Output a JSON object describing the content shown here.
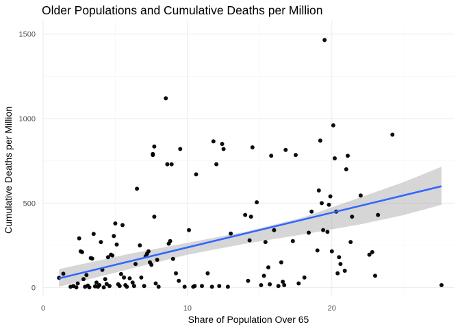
{
  "chart_data": {
    "type": "scatter",
    "title": "Older Populations and Cumulative Deaths per Million",
    "xlabel": "Share of Population Over 65",
    "ylabel": "Cumulative Deaths per Million",
    "xlim": [
      0,
      28.5
    ],
    "ylim": [
      -50,
      1580
    ],
    "x_ticks": [
      0,
      10,
      20
    ],
    "x_tick_labels": [
      "0",
      "10",
      "20"
    ],
    "y_ticks": [
      0,
      500,
      1000,
      1500
    ],
    "y_tick_labels": [
      "0",
      "500",
      "1000",
      "1500"
    ],
    "grid": true,
    "legend": "none",
    "point_color": "#000000",
    "fit_line_color": "#3366FF",
    "ribbon_color": "#999999",
    "points": [
      [
        1.1,
        58
      ],
      [
        1.4,
        82
      ],
      [
        1.9,
        5
      ],
      [
        2.1,
        10
      ],
      [
        2.3,
        2
      ],
      [
        2.4,
        25
      ],
      [
        2.5,
        292
      ],
      [
        2.6,
        215
      ],
      [
        2.7,
        210
      ],
      [
        2.8,
        50
      ],
      [
        2.9,
        5
      ],
      [
        3.0,
        75
      ],
      [
        3.1,
        12
      ],
      [
        3.2,
        2
      ],
      [
        3.3,
        175
      ],
      [
        3.4,
        172
      ],
      [
        3.5,
        318
      ],
      [
        3.6,
        8
      ],
      [
        3.7,
        30
      ],
      [
        3.8,
        5
      ],
      [
        3.9,
        15
      ],
      [
        4.0,
        270
      ],
      [
        4.1,
        105
      ],
      [
        4.2,
        2
      ],
      [
        4.3,
        50
      ],
      [
        4.4,
        22
      ],
      [
        4.5,
        180
      ],
      [
        4.6,
        10
      ],
      [
        4.7,
        195
      ],
      [
        4.8,
        190
      ],
      [
        4.9,
        305
      ],
      [
        5.0,
        380
      ],
      [
        5.1,
        255
      ],
      [
        5.2,
        20
      ],
      [
        5.3,
        10
      ],
      [
        5.4,
        80
      ],
      [
        5.5,
        370
      ],
      [
        5.6,
        60
      ],
      [
        5.7,
        15
      ],
      [
        5.8,
        5
      ],
      [
        6.0,
        55
      ],
      [
        6.2,
        30
      ],
      [
        6.3,
        10
      ],
      [
        6.4,
        140
      ],
      [
        6.5,
        585
      ],
      [
        6.7,
        250
      ],
      [
        6.8,
        60
      ],
      [
        7.0,
        10
      ],
      [
        7.1,
        185
      ],
      [
        7.2,
        200
      ],
      [
        7.3,
        215
      ],
      [
        7.4,
        150
      ],
      [
        7.5,
        135
      ],
      [
        7.6,
        785
      ],
      [
        7.6,
        790
      ],
      [
        7.7,
        835
      ],
      [
        7.7,
        420
      ],
      [
        7.8,
        25
      ],
      [
        7.9,
        165
      ],
      [
        8.0,
        5
      ],
      [
        8.5,
        1120
      ],
      [
        8.6,
        730
      ],
      [
        8.7,
        260
      ],
      [
        8.8,
        275
      ],
      [
        8.9,
        730
      ],
      [
        9.0,
        170
      ],
      [
        9.2,
        85
      ],
      [
        9.4,
        40
      ],
      [
        9.5,
        820
      ],
      [
        9.8,
        5
      ],
      [
        10.1,
        340
      ],
      [
        10.4,
        5
      ],
      [
        10.5,
        10
      ],
      [
        10.6,
        670
      ],
      [
        11.0,
        10
      ],
      [
        11.4,
        85
      ],
      [
        11.7,
        5
      ],
      [
        11.8,
        865
      ],
      [
        12.0,
        730
      ],
      [
        12.2,
        10
      ],
      [
        12.4,
        850
      ],
      [
        12.5,
        820
      ],
      [
        12.8,
        5
      ],
      [
        13.0,
        320
      ],
      [
        14.0,
        430
      ],
      [
        14.2,
        40
      ],
      [
        14.3,
        280
      ],
      [
        14.4,
        420
      ],
      [
        14.5,
        830
      ],
      [
        14.8,
        505
      ],
      [
        15.1,
        15
      ],
      [
        15.3,
        70
      ],
      [
        15.4,
        270
      ],
      [
        15.6,
        120
      ],
      [
        15.7,
        20
      ],
      [
        15.8,
        780
      ],
      [
        16.0,
        340
      ],
      [
        16.3,
        10
      ],
      [
        16.5,
        150
      ],
      [
        16.6,
        35
      ],
      [
        16.7,
        15
      ],
      [
        16.8,
        815
      ],
      [
        17.3,
        275
      ],
      [
        17.5,
        785
      ],
      [
        17.7,
        25
      ],
      [
        18.1,
        60
      ],
      [
        18.4,
        325
      ],
      [
        18.6,
        450
      ],
      [
        19.0,
        220
      ],
      [
        19.1,
        575
      ],
      [
        19.2,
        870
      ],
      [
        19.3,
        500
      ],
      [
        19.4,
        340
      ],
      [
        19.5,
        1465
      ],
      [
        19.7,
        330
      ],
      [
        19.8,
        490
      ],
      [
        19.9,
        540
      ],
      [
        20.0,
        215
      ],
      [
        20.1,
        960
      ],
      [
        20.2,
        765
      ],
      [
        20.3,
        450
      ],
      [
        20.4,
        85
      ],
      [
        20.5,
        180
      ],
      [
        20.6,
        140
      ],
      [
        20.9,
        100
      ],
      [
        21.0,
        700
      ],
      [
        21.1,
        780
      ],
      [
        21.3,
        270
      ],
      [
        21.4,
        420
      ],
      [
        22.0,
        545
      ],
      [
        22.6,
        195
      ],
      [
        22.8,
        210
      ],
      [
        23.0,
        70
      ],
      [
        23.2,
        430
      ],
      [
        24.2,
        905
      ],
      [
        27.6,
        15
      ]
    ],
    "fit": {
      "x": [
        1.1,
        27.6
      ],
      "y": [
        55,
        600
      ]
    },
    "confidence_band": {
      "x": [
        1.1,
        6.0,
        10.0,
        14.0,
        18.0,
        22.0,
        25.0,
        27.6
      ],
      "lower": [
        5,
        110,
        195,
        260,
        315,
        375,
        430,
        490
      ],
      "upper": [
        110,
        200,
        265,
        330,
        415,
        535,
        625,
        715
      ]
    }
  }
}
